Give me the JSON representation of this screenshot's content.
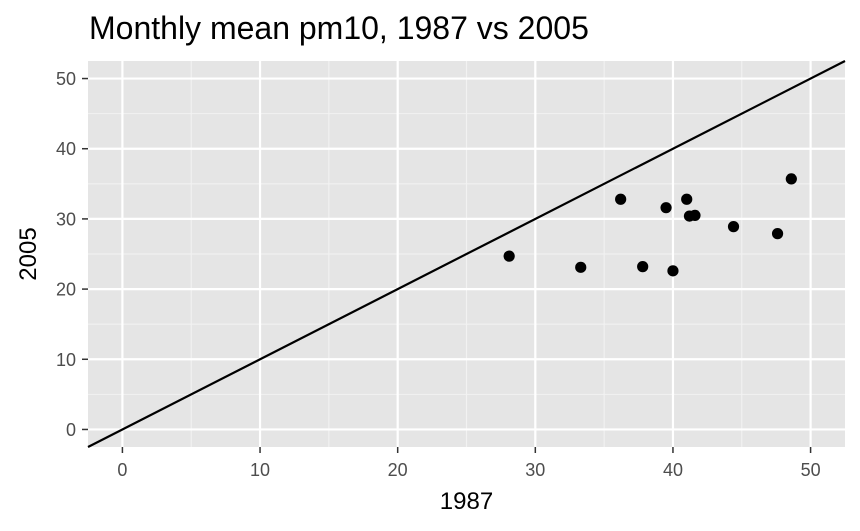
{
  "chart_data": {
    "type": "scatter",
    "title": "Monthly mean pm10, 1987 vs 2005",
    "xlabel": "1987",
    "ylabel": "2005",
    "xlim": [
      -2.5,
      52.5
    ],
    "ylim": [
      -2.5,
      52.5
    ],
    "x_ticks": [
      0,
      10,
      20,
      30,
      40,
      50
    ],
    "y_ticks": [
      0,
      10,
      20,
      30,
      40,
      50
    ],
    "x_tick_labels": [
      "0",
      "10",
      "20",
      "30",
      "40",
      "50"
    ],
    "y_tick_labels": [
      "0",
      "10",
      "20",
      "30",
      "40",
      "50"
    ],
    "grid": true,
    "reference_line": {
      "slope": 1,
      "intercept": 0
    },
    "points": [
      {
        "x": 28.1,
        "y": 24.7
      },
      {
        "x": 33.3,
        "y": 23.1
      },
      {
        "x": 36.2,
        "y": 32.8
      },
      {
        "x": 37.8,
        "y": 23.2
      },
      {
        "x": 39.5,
        "y": 31.6
      },
      {
        "x": 40.0,
        "y": 22.6
      },
      {
        "x": 41.0,
        "y": 32.8
      },
      {
        "x": 41.2,
        "y": 30.4
      },
      {
        "x": 41.6,
        "y": 30.5
      },
      {
        "x": 44.4,
        "y": 28.9
      },
      {
        "x": 47.6,
        "y": 27.9
      },
      {
        "x": 48.6,
        "y": 35.7
      }
    ],
    "colors": {
      "panel_background": "#e5e5e5",
      "grid_major": "#ffffff",
      "grid_minor": "#f2f2f2",
      "points": "#000000",
      "reference_line": "#000000",
      "tick_label": "#4d4d4d",
      "tick_mark": "#333333"
    }
  }
}
